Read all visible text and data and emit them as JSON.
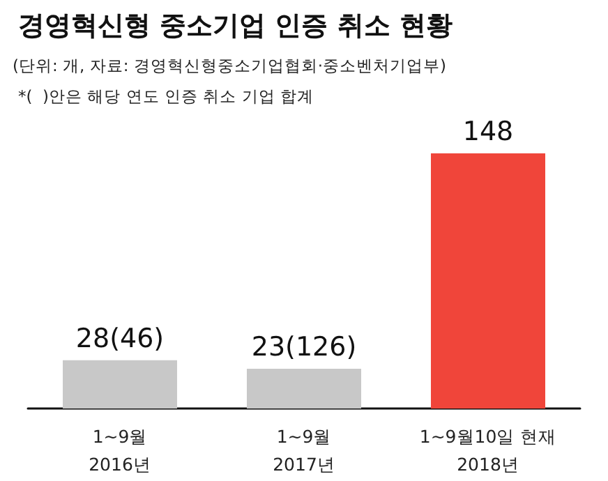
{
  "chart_data": {
    "type": "bar",
    "title": "경영혁신형 중소기업 인증 취소 현황",
    "subtitle": "(단위: 개, 자료: 경영혁신형중소기업협회·중소벤처기업부)",
    "annotations": [
      "*(  )안은 해당 연도 인증 취소 기업 합계"
    ],
    "categories": [
      "1~9월\n2016년",
      "1~9월\n2017년",
      "1~9월10일 현재\n2018년"
    ],
    "values": [
      28,
      23,
      148
    ],
    "colors": [
      "#c8c8c8",
      "#c8c8c8",
      "#f0453a"
    ],
    "value_labels": [
      "28(46)",
      "23(126)",
      "148"
    ]
  }
}
